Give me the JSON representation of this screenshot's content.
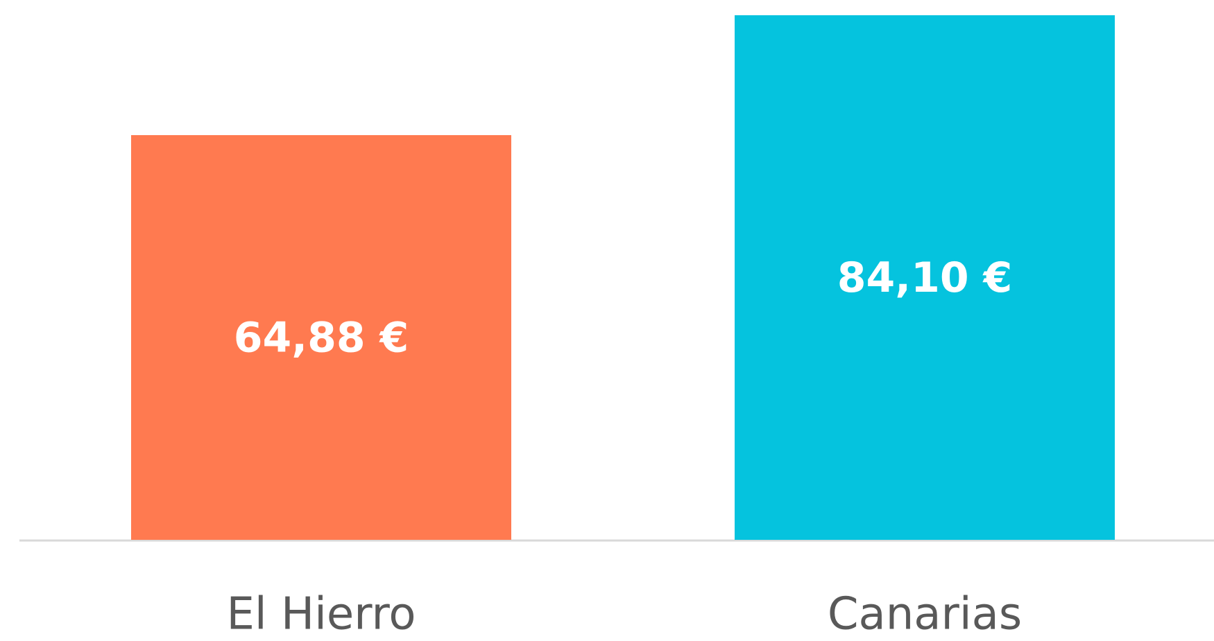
{
  "chart_data": {
    "type": "bar",
    "categories": [
      "El Hierro",
      "Canarias"
    ],
    "values": [
      64.88,
      84.1
    ],
    "value_labels": [
      "64,88 €",
      "84,10 €"
    ],
    "colors": [
      "#ff7a50",
      "#05c3de"
    ]
  }
}
